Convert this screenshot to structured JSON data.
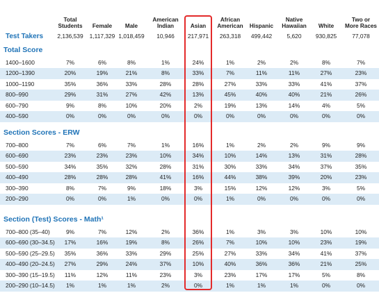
{
  "header": {
    "columns": [
      "Total Students",
      "Female",
      "Male",
      "American Indian",
      "Asian",
      "African American",
      "Hispanic",
      "Native Hawaiian",
      "White",
      "Two or More Races"
    ]
  },
  "test_takers": {
    "label": "Test Takers",
    "values": [
      "2,136,539",
      "1,117,329",
      "1,018,459",
      "10,946",
      "217,971",
      "263,318",
      "499,442",
      "5,620",
      "930,825",
      "77,078"
    ]
  },
  "sections": [
    {
      "title": "Total Score",
      "rows": [
        {
          "label": "1400–1600",
          "values": [
            "7%",
            "6%",
            "8%",
            "1%",
            "24%",
            "1%",
            "2%",
            "2%",
            "8%",
            "7%"
          ]
        },
        {
          "label": "1200–1390",
          "values": [
            "20%",
            "19%",
            "21%",
            "8%",
            "33%",
            "7%",
            "11%",
            "11%",
            "27%",
            "23%"
          ]
        },
        {
          "label": "1000–1190",
          "values": [
            "35%",
            "36%",
            "33%",
            "28%",
            "28%",
            "27%",
            "33%",
            "33%",
            "41%",
            "37%"
          ]
        },
        {
          "label": "800–990",
          "values": [
            "29%",
            "31%",
            "27%",
            "42%",
            "13%",
            "45%",
            "40%",
            "40%",
            "21%",
            "26%"
          ]
        },
        {
          "label": "600–790",
          "values": [
            "9%",
            "8%",
            "10%",
            "20%",
            "2%",
            "19%",
            "13%",
            "14%",
            "4%",
            "5%"
          ]
        },
        {
          "label": "400–590",
          "values": [
            "0%",
            "0%",
            "0%",
            "0%",
            "0%",
            "0%",
            "0%",
            "0%",
            "0%",
            "0%"
          ]
        }
      ]
    },
    {
      "title": "Section Scores - ERW",
      "rows": [
        {
          "label": "700–800",
          "values": [
            "7%",
            "6%",
            "7%",
            "1%",
            "16%",
            "1%",
            "2%",
            "2%",
            "9%",
            "9%"
          ]
        },
        {
          "label": "600–690",
          "values": [
            "23%",
            "23%",
            "23%",
            "10%",
            "34%",
            "10%",
            "14%",
            "13%",
            "31%",
            "28%"
          ]
        },
        {
          "label": "500–590",
          "values": [
            "34%",
            "35%",
            "32%",
            "28%",
            "31%",
            "30%",
            "33%",
            "34%",
            "37%",
            "35%"
          ]
        },
        {
          "label": "400–490",
          "values": [
            "28%",
            "28%",
            "28%",
            "41%",
            "16%",
            "44%",
            "38%",
            "39%",
            "20%",
            "23%"
          ]
        },
        {
          "label": "300–390",
          "values": [
            "8%",
            "7%",
            "9%",
            "18%",
            "3%",
            "15%",
            "12%",
            "12%",
            "3%",
            "5%"
          ]
        },
        {
          "label": "200–290",
          "values": [
            "0%",
            "0%",
            "1%",
            "0%",
            "0%",
            "1%",
            "0%",
            "0%",
            "0%",
            "0%"
          ]
        }
      ]
    },
    {
      "title": "Section (Test) Scores - Math¹",
      "rows": [
        {
          "label": "700–800 (35–40)",
          "values": [
            "9%",
            "7%",
            "12%",
            "2%",
            "36%",
            "1%",
            "3%",
            "3%",
            "10%",
            "10%"
          ]
        },
        {
          "label": "600–690 (30–34.5)",
          "values": [
            "17%",
            "16%",
            "19%",
            "8%",
            "26%",
            "7%",
            "10%",
            "10%",
            "23%",
            "19%"
          ]
        },
        {
          "label": "500–590 (25–29.5)",
          "values": [
            "35%",
            "36%",
            "33%",
            "29%",
            "25%",
            "27%",
            "33%",
            "34%",
            "41%",
            "37%"
          ]
        },
        {
          "label": "400–490 (20–24.5)",
          "values": [
            "27%",
            "29%",
            "24%",
            "37%",
            "10%",
            "40%",
            "36%",
            "36%",
            "21%",
            "25%"
          ]
        },
        {
          "label": "300–390 (15–19.5)",
          "values": [
            "11%",
            "12%",
            "11%",
            "23%",
            "3%",
            "23%",
            "17%",
            "17%",
            "5%",
            "8%"
          ]
        },
        {
          "label": "200–290 (10–14.5)",
          "values": [
            "1%",
            "1%",
            "1%",
            "2%",
            "0%",
            "1%",
            "1%",
            "1%",
            "0%",
            "0%"
          ]
        }
      ]
    }
  ]
}
